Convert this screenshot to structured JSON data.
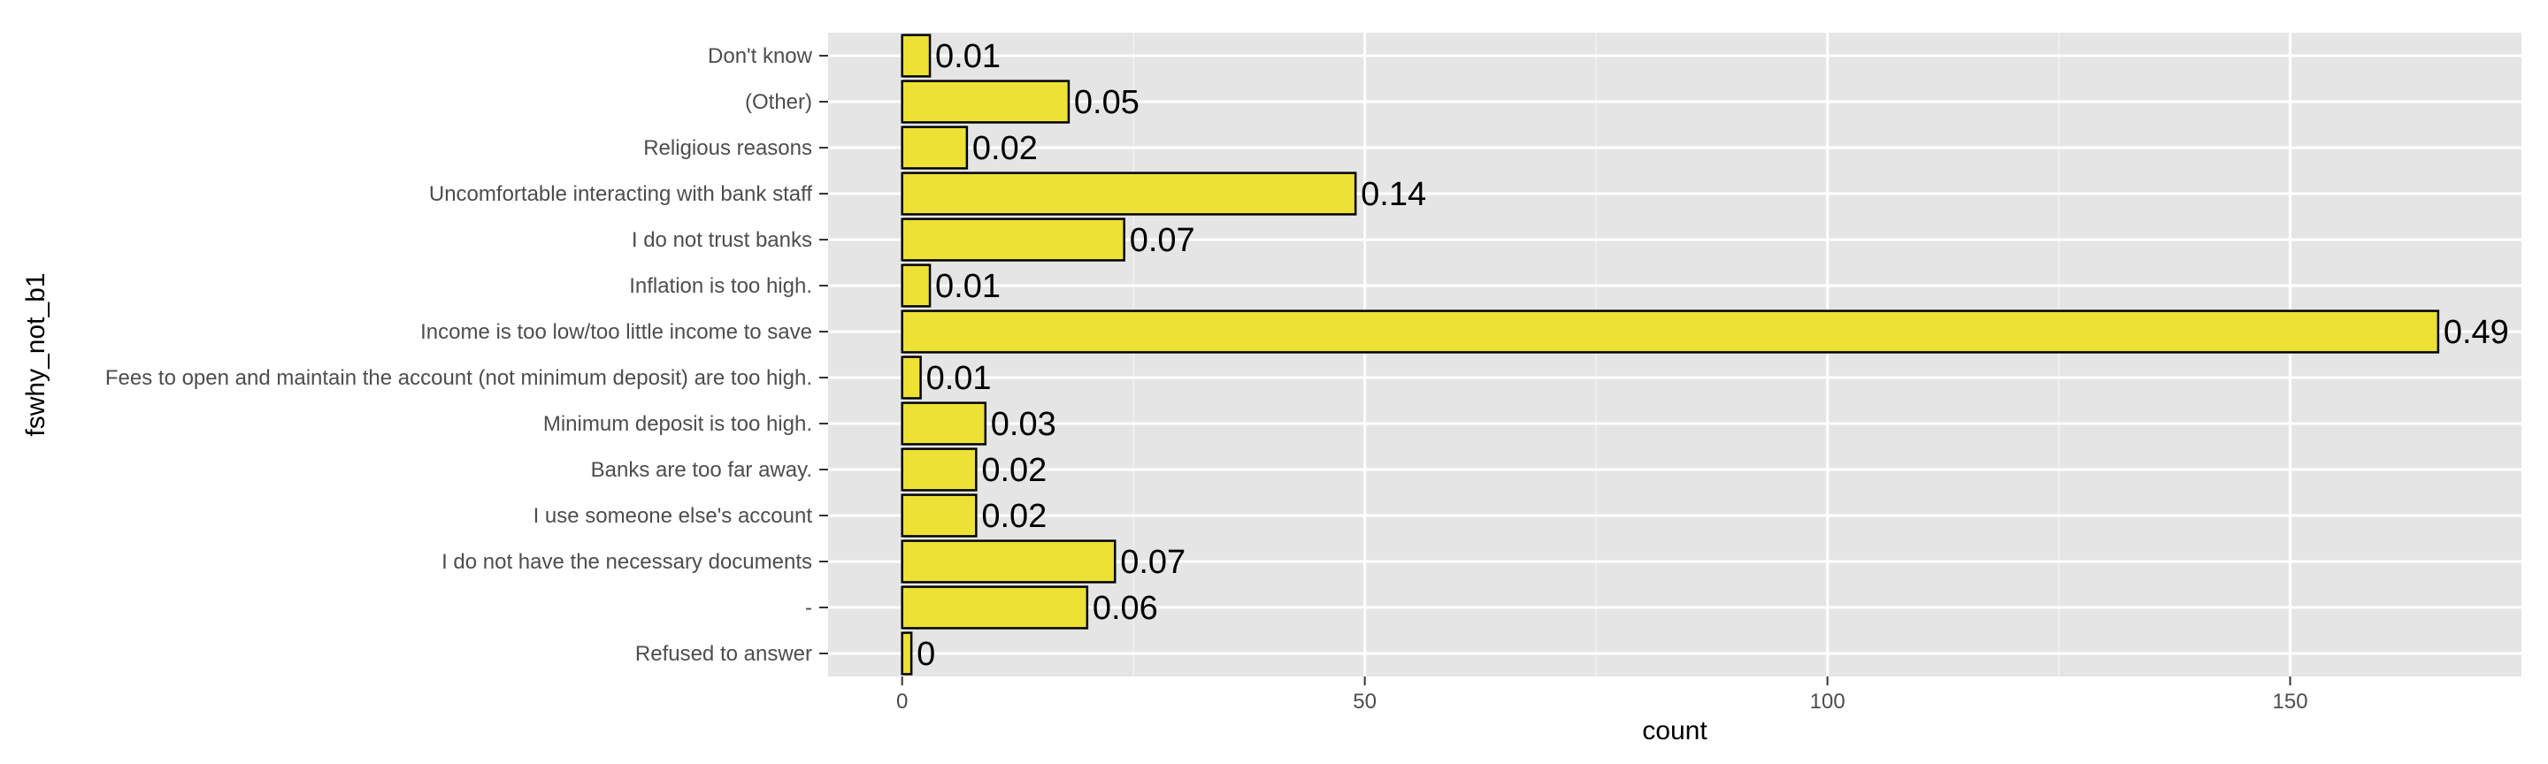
{
  "chart_data": {
    "type": "bar",
    "orientation": "horizontal",
    "xlabel": "count",
    "ylabel": "fswhy_not_b1",
    "xlim": [
      -8,
      175
    ],
    "x_ticks": [
      0,
      50,
      100,
      150
    ],
    "x_tick_labels": [
      "0",
      "50",
      "100",
      "150"
    ],
    "grid": true,
    "legend": "none",
    "categories": [
      "Don't know",
      "(Other)",
      "Religious reasons",
      "Uncomfortable interacting with bank staff",
      "I do not trust banks",
      "Inflation is too high.",
      "Income is too low/too little income to save",
      "Fees to open and maintain the account (not minimum deposit) are too high.",
      "Minimum deposit is too high.",
      "Banks are too far away.",
      "I use someone else's account",
      "I do not have the necessary documents",
      "-",
      "Refused to answer"
    ],
    "values": [
      3,
      18,
      7,
      49,
      24,
      3,
      166,
      2,
      9,
      8,
      8,
      23,
      20,
      1
    ],
    "data_labels": [
      "0.01",
      "0.05",
      "0.02",
      "0.14",
      "0.07",
      "0.01",
      "0.49",
      "0.01",
      "0.03",
      "0.02",
      "0.02",
      "0.07",
      "0.06",
      "0"
    ],
    "colors": {
      "bar_fill": "#ECE134",
      "bar_stroke": "#000000",
      "panel_bg": "#E5E5E5",
      "grid": "#FFFFFF"
    }
  }
}
